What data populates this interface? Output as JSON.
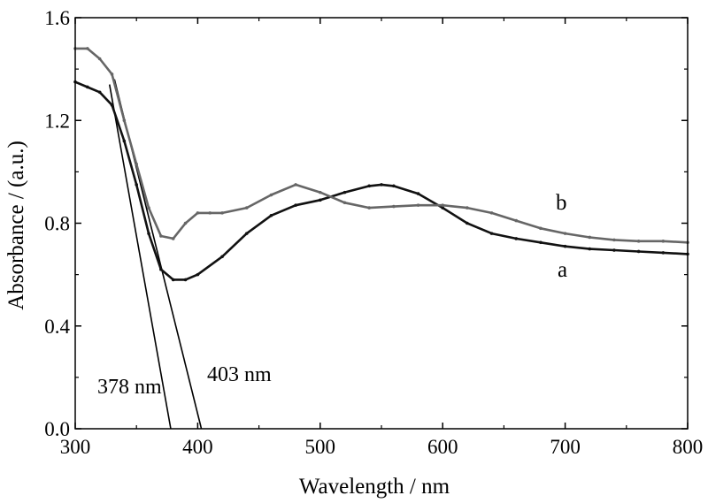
{
  "chart_data": {
    "type": "line",
    "title": "",
    "xlabel": "Wavelength / nm",
    "ylabel": "Absorbance / (a.u.)",
    "xlim": [
      300,
      800
    ],
    "ylim": [
      0.0,
      1.6
    ],
    "xticks": [
      "300",
      "400",
      "500",
      "600",
      "700",
      "800"
    ],
    "yticks": [
      "0.0",
      "0.4",
      "0.8",
      "1.2",
      "1.6"
    ],
    "grid": false,
    "legend": "none",
    "series": [
      {
        "name": "a",
        "color": "#111111",
        "x": [
          300,
          310,
          320,
          330,
          340,
          350,
          360,
          370,
          380,
          390,
          400,
          420,
          440,
          460,
          480,
          500,
          520,
          540,
          550,
          560,
          580,
          600,
          620,
          640,
          660,
          680,
          700,
          720,
          740,
          760,
          780,
          800
        ],
        "y": [
          1.35,
          1.33,
          1.31,
          1.26,
          1.12,
          0.95,
          0.76,
          0.62,
          0.58,
          0.58,
          0.6,
          0.67,
          0.76,
          0.83,
          0.87,
          0.89,
          0.92,
          0.945,
          0.95,
          0.945,
          0.915,
          0.86,
          0.8,
          0.76,
          0.74,
          0.725,
          0.71,
          0.7,
          0.695,
          0.69,
          0.685,
          0.68
        ]
      },
      {
        "name": "b",
        "color": "#666666",
        "x": [
          300,
          310,
          320,
          330,
          340,
          350,
          360,
          370,
          380,
          390,
          400,
          410,
          420,
          440,
          460,
          480,
          500,
          520,
          540,
          560,
          580,
          600,
          620,
          640,
          660,
          680,
          700,
          720,
          740,
          760,
          780,
          800
        ],
        "y": [
          1.48,
          1.48,
          1.44,
          1.38,
          1.2,
          1.03,
          0.86,
          0.75,
          0.74,
          0.8,
          0.84,
          0.84,
          0.84,
          0.86,
          0.91,
          0.95,
          0.92,
          0.88,
          0.86,
          0.865,
          0.87,
          0.87,
          0.86,
          0.84,
          0.81,
          0.78,
          0.76,
          0.745,
          0.735,
          0.73,
          0.73,
          0.725
        ]
      }
    ],
    "tangent_lines": [
      {
        "label": "378 nm",
        "x": [
          328,
          378
        ],
        "y": [
          1.34,
          0.0
        ]
      },
      {
        "label": "403 nm",
        "x": [
          332,
          403
        ],
        "y": [
          1.36,
          0.0
        ]
      }
    ],
    "series_labels": [
      "a",
      "b"
    ]
  }
}
